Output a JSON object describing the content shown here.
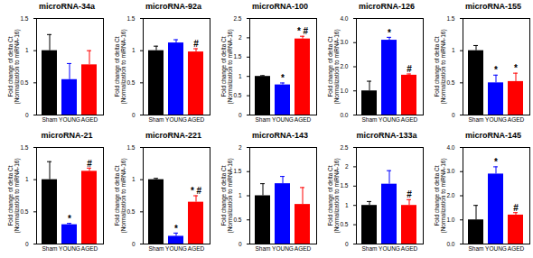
{
  "chart_data": [
    {
      "type": "bar",
      "title": "microRNA-34a",
      "ylabel": "Fold change of delta Ct\n(Normalization to miRNA-16)",
      "categories": [
        "Sham",
        "YOUNG",
        "AGED"
      ],
      "values": [
        1.0,
        0.55,
        0.78
      ],
      "errors": [
        0.25,
        0.25,
        0.22
      ],
      "annotations": [
        null,
        null,
        null
      ],
      "colors": [
        "#000000",
        "#0000ff",
        "#ff0000"
      ],
      "ylim": [
        0,
        1.5
      ],
      "yticks": [
        0,
        0.5,
        1,
        1.5
      ]
    },
    {
      "type": "bar",
      "title": "microRNA-92a",
      "ylabel": "Fold change of delta Ct\n(Normalization to miRNA-16)",
      "categories": [
        "Sham",
        "YOUNG",
        "AGED"
      ],
      "values": [
        1.0,
        1.12,
        0.98
      ],
      "errors": [
        0.07,
        0.05,
        0.05
      ],
      "annotations": [
        null,
        null,
        "#"
      ],
      "colors": [
        "#000000",
        "#0000ff",
        "#ff0000"
      ],
      "ylim": [
        0,
        1.5
      ],
      "yticks": [
        0,
        0.5,
        1,
        1.5
      ]
    },
    {
      "type": "bar",
      "title": "microRNA-100",
      "ylabel": "Fold change of delta Ct\n(Normalization to miRNA-16)",
      "categories": [
        "Sham",
        "YOUNG",
        "AGED"
      ],
      "values": [
        1.0,
        0.78,
        1.97
      ],
      "errors": [
        0.02,
        0.05,
        0.07
      ],
      "annotations": [
        null,
        "*",
        "* #"
      ],
      "colors": [
        "#000000",
        "#0000ff",
        "#ff0000"
      ],
      "ylim": [
        0,
        2.5
      ],
      "yticks": [
        0,
        0.5,
        1,
        1.5,
        2,
        2.5
      ]
    },
    {
      "type": "bar",
      "title": "microRNA-126",
      "ylabel": "Fold change of delta Ct\n(Normalization to miRNA-16)",
      "categories": [
        "Sham",
        "YOUNG",
        "AGED"
      ],
      "values": [
        1.0,
        3.1,
        1.65
      ],
      "errors": [
        0.4,
        0.12,
        0.05
      ],
      "annotations": [
        null,
        "*",
        "#"
      ],
      "colors": [
        "#000000",
        "#0000ff",
        "#ff0000"
      ],
      "ylim": [
        0,
        4
      ],
      "yticks": [
        {
          "value": 0,
          "label": "0.0"
        },
        {
          "value": 1,
          "label": "1.0"
        },
        {
          "value": 2,
          "label": "2.0"
        },
        {
          "value": 3,
          "label": "3.0"
        },
        {
          "value": 4,
          "label": "4.0"
        }
      ]
    },
    {
      "type": "bar",
      "title": "microRNA-155",
      "ylabel": "Fold change of delta Ct\n(Normalization to miRNA-16)",
      "categories": [
        "Sham",
        "YOUNG",
        "AGED"
      ],
      "values": [
        1.0,
        0.5,
        0.52
      ],
      "errors": [
        0.08,
        0.12,
        0.13
      ],
      "annotations": [
        null,
        "*",
        "*"
      ],
      "colors": [
        "#000000",
        "#0000ff",
        "#ff0000"
      ],
      "ylim": [
        0,
        1.5
      ],
      "yticks": [
        0,
        0.5,
        1,
        1.5
      ]
    },
    {
      "type": "bar",
      "title": "microRNA-21",
      "ylabel": "Fold change of delta Ct\n(Normalization to miRNA-16)",
      "categories": [
        "Sham",
        "YOUNG",
        "AGED"
      ],
      "values": [
        1.0,
        0.3,
        1.13
      ],
      "errors": [
        0.28,
        0.02,
        0.05
      ],
      "annotations": [
        null,
        "*",
        "#"
      ],
      "colors": [
        "#000000",
        "#0000ff",
        "#ff0000"
      ],
      "ylim": [
        0,
        1.5
      ],
      "yticks": [
        0,
        0.5,
        1,
        1.5
      ]
    },
    {
      "type": "bar",
      "title": "microRNA-221",
      "ylabel": "Fold change of delta Ct\n(Normalization to miRNA-16)",
      "categories": [
        "Sham",
        "YOUNG",
        "AGED"
      ],
      "values": [
        1.0,
        0.12,
        0.65
      ],
      "errors": [
        0.02,
        0.05,
        0.1
      ],
      "annotations": [
        null,
        "*",
        "* #"
      ],
      "colors": [
        "#000000",
        "#0000ff",
        "#ff0000"
      ],
      "ylim": [
        0,
        1.5
      ],
      "yticks": [
        0,
        0.5,
        1,
        1.5
      ]
    },
    {
      "type": "bar",
      "title": "microRNA-143",
      "ylabel": "Fold change of delta Ct\n(Normalization to miRNA-16)",
      "categories": [
        "Sham",
        "YOUNG",
        "AGED"
      ],
      "values": [
        1.0,
        1.25,
        0.82
      ],
      "errors": [
        0.25,
        0.15,
        0.35
      ],
      "annotations": [
        null,
        null,
        null
      ],
      "colors": [
        "#000000",
        "#0000ff",
        "#ff0000"
      ],
      "ylim": [
        0,
        2
      ],
      "yticks": [
        0,
        0.5,
        1,
        1.5,
        2
      ]
    },
    {
      "type": "bar",
      "title": "microRNA-133a",
      "ylabel": "Fold change of delta Ct\n(Normalization to miRNA-16)",
      "categories": [
        "Sham",
        "YOUNG",
        "AGED"
      ],
      "values": [
        1.0,
        1.55,
        1.0
      ],
      "errors": [
        0.1,
        0.35,
        0.15
      ],
      "annotations": [
        null,
        null,
        "#"
      ],
      "colors": [
        "#000000",
        "#0000ff",
        "#ff0000"
      ],
      "ylim": [
        0,
        2.5
      ],
      "yticks": [
        0,
        0.5,
        1,
        1.5,
        2,
        2.5
      ]
    },
    {
      "type": "bar",
      "title": "microRNA-145",
      "ylabel": "Fold change of delta Ct\n(Normalization to miRNA-16)",
      "categories": [
        "Sham",
        "YOUNG",
        "AGED"
      ],
      "values": [
        1.0,
        2.9,
        1.2
      ],
      "errors": [
        0.6,
        0.3,
        0.1
      ],
      "annotations": [
        null,
        "*",
        "#"
      ],
      "colors": [
        "#000000",
        "#0000ff",
        "#ff0000"
      ],
      "ylim": [
        0,
        4
      ],
      "yticks": [
        {
          "value": 0,
          "label": "0.0"
        },
        {
          "value": 1,
          "label": "1.0"
        },
        {
          "value": 2,
          "label": "2.0"
        },
        {
          "value": 3,
          "label": "3.0"
        },
        {
          "value": 4,
          "label": "4.0"
        }
      ]
    }
  ]
}
